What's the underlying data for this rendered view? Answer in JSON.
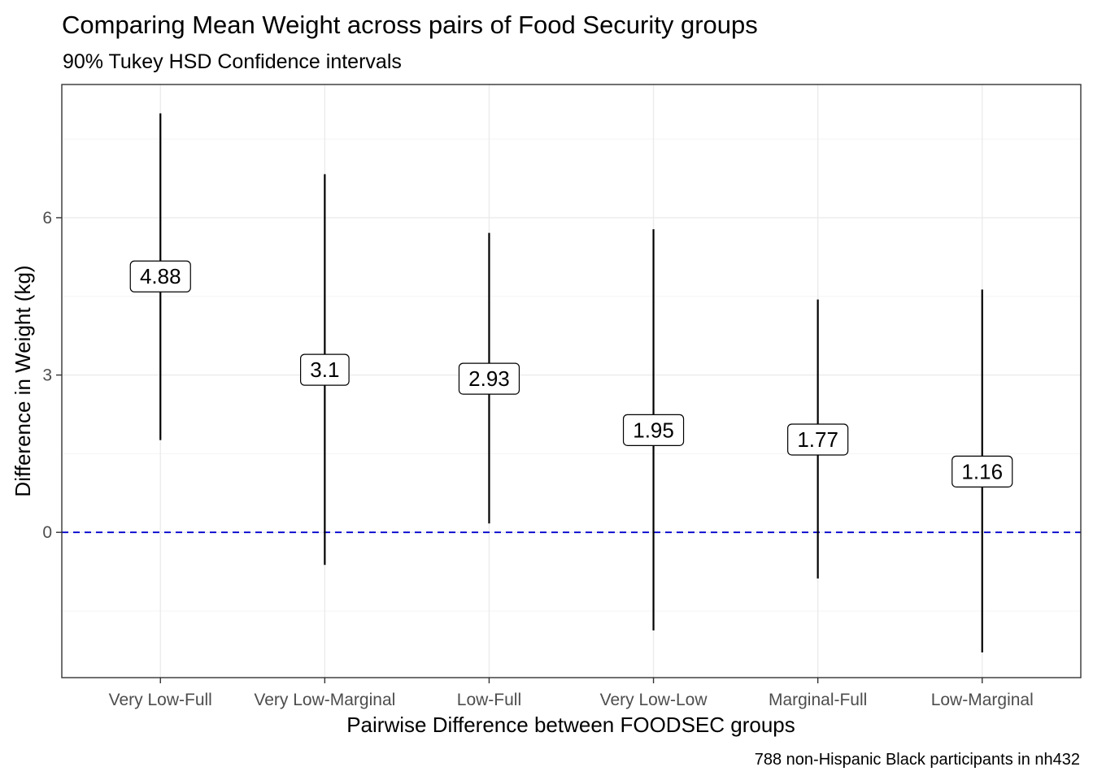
{
  "chart_data": {
    "type": "errorbar",
    "title": "Comparing Mean Weight across pairs of Food Security groups",
    "subtitle": "90% Tukey HSD Confidence intervals",
    "xlabel": "Pairwise Difference between FOODSEC groups",
    "ylabel": "Difference in Weight (kg)",
    "caption": "788 non-Hispanic Black participants in nh432",
    "categories": [
      "Very Low-Full",
      "Very Low-Marginal",
      "Low-Full",
      "Very Low-Low",
      "Marginal-Full",
      "Low-Marginal"
    ],
    "estimates": [
      4.88,
      3.1,
      2.93,
      1.95,
      1.77,
      1.16
    ],
    "estimate_labels": [
      "4.88",
      "3.1",
      "2.93",
      "1.95",
      "1.77",
      "1.16"
    ],
    "lower": [
      1.76,
      -0.62,
      0.17,
      -1.87,
      -0.88,
      -2.29
    ],
    "upper": [
      7.99,
      6.83,
      5.71,
      5.78,
      4.44,
      4.63
    ],
    "ylim": [
      -2.77,
      8.54
    ],
    "y_ticks": [
      0,
      3,
      6
    ],
    "y_tick_labels": [
      "0",
      "3",
      "6"
    ],
    "reference_line": {
      "y": 0,
      "style": "dashed",
      "color": "#0000cd"
    },
    "grid": true,
    "theme": "bw",
    "colors": {
      "errorbar": "#000000",
      "grid_major": "#ebebeb",
      "grid_minor": "#f5f5f5",
      "panel_border": "#333333",
      "tick_text": "#4d4d4d"
    }
  }
}
